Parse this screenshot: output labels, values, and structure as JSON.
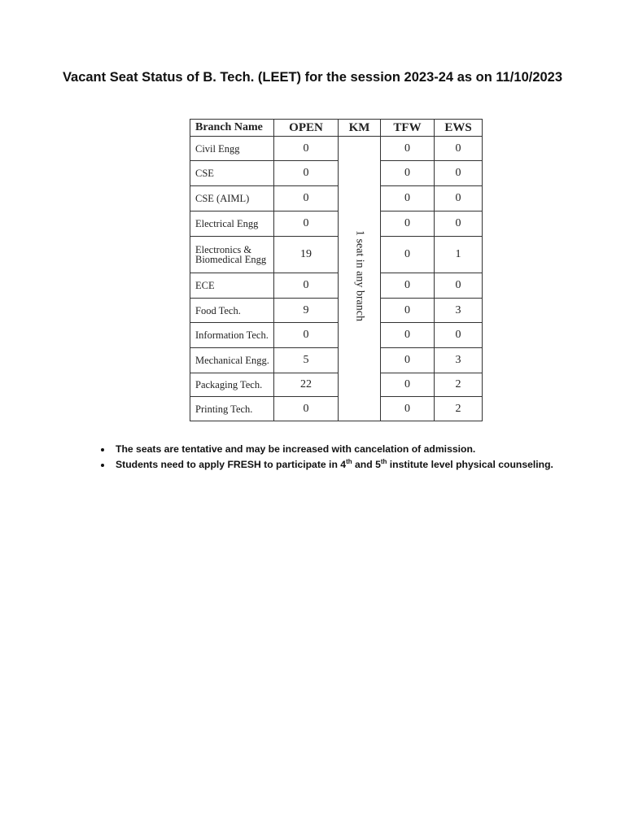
{
  "title": "Vacant Seat Status of B. Tech. (LEET) for the session 2023-24 as on 11/10/2023",
  "table": {
    "headers": [
      "Branch Name",
      "OPEN",
      "KM",
      "TFW",
      "EWS"
    ],
    "km_note": "1 seat in any branch",
    "rows": [
      {
        "branch": "Civil Engg",
        "open": "0",
        "tfw": "0",
        "ews": "0"
      },
      {
        "branch": "CSE",
        "open": "0",
        "tfw": "0",
        "ews": "0"
      },
      {
        "branch": "CSE (AIML)",
        "open": "0",
        "tfw": "0",
        "ews": "0"
      },
      {
        "branch": "Electrical Engg",
        "open": "0",
        "tfw": "0",
        "ews": "0"
      },
      {
        "branch": "Electronics & Biomedical Engg",
        "open": "19",
        "tfw": "0",
        "ews": "1"
      },
      {
        "branch": "ECE",
        "open": "0",
        "tfw": "0",
        "ews": "0"
      },
      {
        "branch": "Food Tech.",
        "open": "9",
        "tfw": "0",
        "ews": "3"
      },
      {
        "branch": "Information Tech.",
        "open": "0",
        "tfw": "0",
        "ews": "0"
      },
      {
        "branch": "Mechanical Engg.",
        "open": "5",
        "tfw": "0",
        "ews": "3"
      },
      {
        "branch": "Packaging Tech.",
        "open": "22",
        "tfw": "0",
        "ews": "2"
      },
      {
        "branch": "Printing Tech.",
        "open": "0",
        "tfw": "0",
        "ews": "2"
      }
    ]
  },
  "notes": {
    "n1": "The seats are tentative and may be increased with cancelation of admission.",
    "n2_a": "Students need to apply FRESH to participate in 4",
    "n2_sup1": "th",
    "n2_b": " and 5",
    "n2_sup2": "th",
    "n2_c": " institute level physical counseling."
  }
}
